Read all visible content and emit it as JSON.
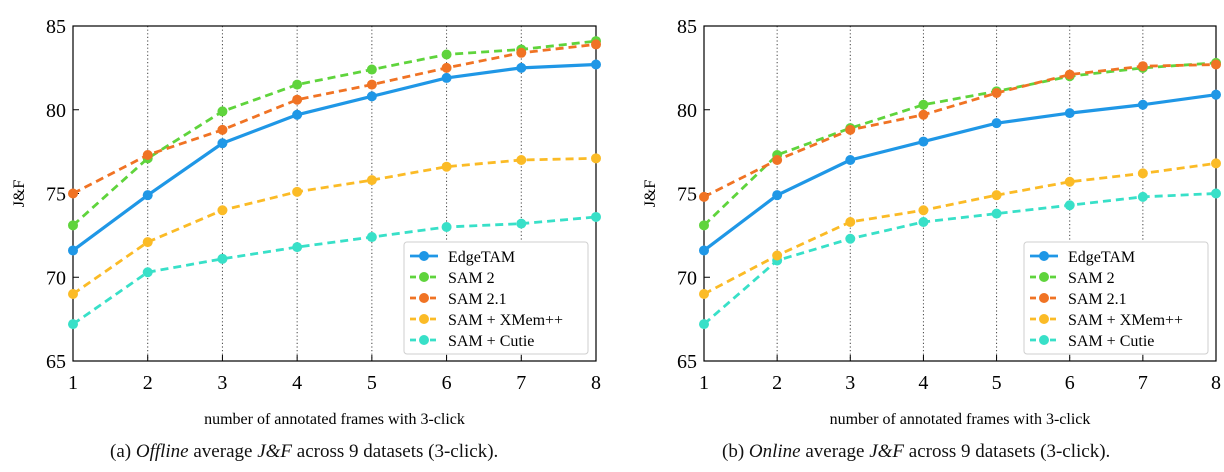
{
  "chart_data": [
    {
      "type": "line",
      "panel": "a",
      "xlabel": "number of annotated frames with 3-click",
      "ylabel": "J&F",
      "x": [
        1,
        2,
        3,
        4,
        5,
        6,
        7,
        8
      ],
      "xlim": [
        1,
        8
      ],
      "ylim": [
        65,
        85
      ],
      "yticks": [
        65,
        70,
        75,
        80,
        85
      ],
      "grid": "vertical dotted",
      "legend_position": "bottom-right",
      "series": [
        {
          "name": "EdgeTAM",
          "color": "#1f97e6",
          "style": "solid",
          "values": [
            71.6,
            74.9,
            78.0,
            79.7,
            80.8,
            81.9,
            82.5,
            82.7
          ]
        },
        {
          "name": "SAM 2",
          "color": "#5fd43c",
          "style": "dashed",
          "values": [
            73.1,
            77.1,
            79.9,
            81.5,
            82.4,
            83.3,
            83.6,
            84.1
          ]
        },
        {
          "name": "SAM 2.1",
          "color": "#f07324",
          "style": "dashed",
          "values": [
            75.0,
            77.3,
            78.8,
            80.6,
            81.5,
            82.5,
            83.4,
            83.9
          ]
        },
        {
          "name": "SAM + XMem++",
          "color": "#fbbb26",
          "style": "dashed",
          "values": [
            69.0,
            72.1,
            74.0,
            75.1,
            75.8,
            76.6,
            77.0,
            77.1
          ]
        },
        {
          "name": "SAM + Cutie",
          "color": "#38e0c8",
          "style": "dashed",
          "values": [
            67.2,
            70.3,
            71.1,
            71.8,
            72.4,
            73.0,
            73.2,
            73.6
          ]
        }
      ]
    },
    {
      "type": "line",
      "panel": "b",
      "xlabel": "number of annotated frames with 3-click",
      "ylabel": "J&F",
      "x": [
        1,
        2,
        3,
        4,
        5,
        6,
        7,
        8
      ],
      "xlim": [
        1,
        8
      ],
      "ylim": [
        65,
        85
      ],
      "yticks": [
        65,
        70,
        75,
        80,
        85
      ],
      "grid": "vertical dotted",
      "legend_position": "bottom-right",
      "series": [
        {
          "name": "EdgeTAM",
          "color": "#1f97e6",
          "style": "solid",
          "values": [
            71.6,
            74.9,
            77.0,
            78.1,
            79.2,
            79.8,
            80.3,
            80.9
          ]
        },
        {
          "name": "SAM 2",
          "color": "#5fd43c",
          "style": "dashed",
          "values": [
            73.1,
            77.3,
            78.9,
            80.3,
            81.1,
            82.0,
            82.5,
            82.8
          ]
        },
        {
          "name": "SAM 2.1",
          "color": "#f07324",
          "style": "dashed",
          "values": [
            74.8,
            77.0,
            78.8,
            79.7,
            81.0,
            82.1,
            82.6,
            82.7
          ]
        },
        {
          "name": "SAM + XMem++",
          "color": "#fbbb26",
          "style": "dashed",
          "values": [
            69.0,
            71.3,
            73.3,
            74.0,
            74.9,
            75.7,
            76.2,
            76.8
          ]
        },
        {
          "name": "SAM + Cutie",
          "color": "#38e0c8",
          "style": "dashed",
          "values": [
            67.2,
            71.0,
            72.3,
            73.3,
            73.8,
            74.3,
            74.8,
            75.0
          ]
        }
      ]
    }
  ],
  "captions": {
    "a_prefix": "(a) ",
    "a_mode": "Offline",
    "a_mid": " average ",
    "a_metric": "J&F",
    "a_suffix": " across 9 datasets (3-click).",
    "b_prefix": "(b) ",
    "b_mode": "Online",
    "b_mid": " average ",
    "b_metric": "J&F",
    "b_suffix": " across 9 datasets (3-click)."
  }
}
